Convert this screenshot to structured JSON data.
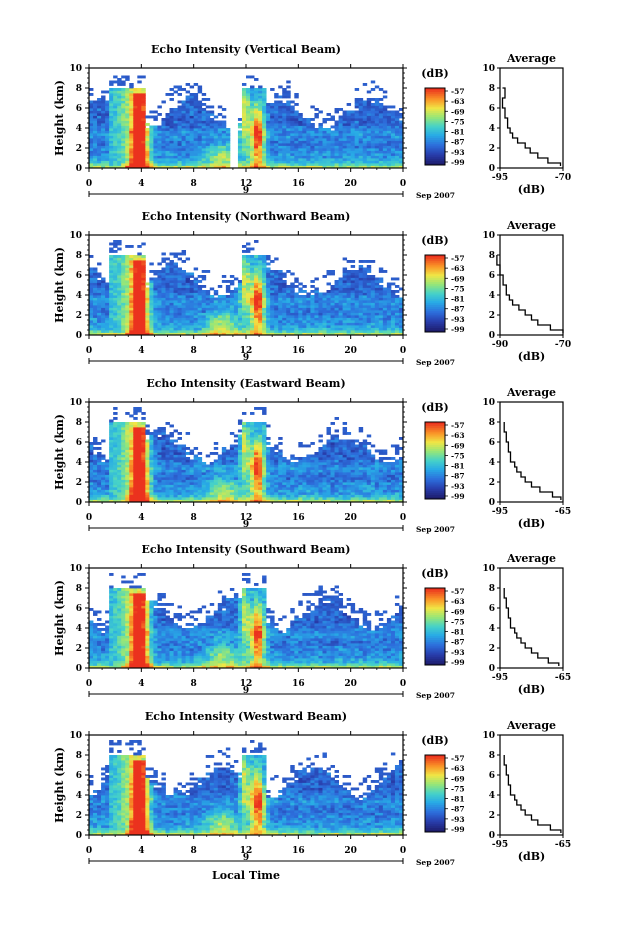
{
  "chart_data": [
    {
      "type": "heatmap",
      "title": "Echo Intensity (Vertical Beam)",
      "ylabel": "Height (km)",
      "ylim": [
        0,
        10
      ],
      "yticks": [
        "0",
        "2",
        "4",
        "6",
        "8",
        "10"
      ],
      "xlim": [
        0,
        24
      ],
      "xticks": [
        "0",
        "4",
        "8",
        "12",
        "16",
        "20",
        "0"
      ],
      "date_label": "9",
      "date_suffix": "Sep 2007",
      "colorbar": {
        "unit": "(dB)",
        "labels": [
          "-57",
          "-63",
          "-69",
          "-75",
          "-81",
          "-87",
          "-93",
          "-99"
        ]
      },
      "average": {
        "title": "Average",
        "xlabel": "(dB)",
        "xticks": [
          "-95",
          "-70"
        ],
        "ylim": [
          0,
          10
        ],
        "yticks": [
          "0",
          "2",
          "4",
          "6",
          "8",
          "10"
        ],
        "profile": [
          [
            0.2,
            -71
          ],
          [
            0.5,
            -76
          ],
          [
            1,
            -80
          ],
          [
            1.5,
            -83
          ],
          [
            2,
            -85
          ],
          [
            2.5,
            -88
          ],
          [
            3,
            -90
          ],
          [
            3.5,
            -91
          ],
          [
            4,
            -92
          ],
          [
            5,
            -93
          ],
          [
            6,
            -94
          ],
          [
            7,
            -93
          ],
          [
            8,
            -94
          ]
        ]
      },
      "gaps": [
        [
          10.8,
          11.4
        ]
      ]
    },
    {
      "type": "heatmap",
      "title": "Echo Intensity (Northward Beam)",
      "ylabel": "Height (km)",
      "ylim": [
        0,
        10
      ],
      "yticks": [
        "0",
        "2",
        "4",
        "6",
        "8",
        "10"
      ],
      "xlim": [
        0,
        24
      ],
      "xticks": [
        "0",
        "4",
        "8",
        "12",
        "16",
        "20",
        "0"
      ],
      "date_label": "9",
      "date_suffix": "Sep 2007",
      "colorbar": {
        "unit": "(dB)",
        "labels": [
          "-57",
          "-63",
          "-69",
          "-75",
          "-81",
          "-87",
          "-93",
          "-99"
        ]
      },
      "average": {
        "title": "Average",
        "xlabel": "(dB)",
        "xticks": [
          "-90",
          "-70"
        ],
        "ylim": [
          0,
          10
        ],
        "yticks": [
          "0",
          "2",
          "4",
          "6",
          "8",
          "10"
        ],
        "profile": [
          [
            0.2,
            -70
          ],
          [
            0.5,
            -74
          ],
          [
            1,
            -78
          ],
          [
            1.5,
            -80
          ],
          [
            2,
            -82
          ],
          [
            2.5,
            -84
          ],
          [
            3,
            -86
          ],
          [
            3.5,
            -87
          ],
          [
            4,
            -88
          ],
          [
            5,
            -89
          ],
          [
            6,
            -90
          ],
          [
            7,
            -91
          ],
          [
            8,
            -91
          ]
        ]
      },
      "gaps": []
    },
    {
      "type": "heatmap",
      "title": "Echo Intensity (Eastward Beam)",
      "ylabel": "Height (km)",
      "ylim": [
        0,
        10
      ],
      "yticks": [
        "0",
        "2",
        "4",
        "6",
        "8",
        "10"
      ],
      "xlim": [
        0,
        24
      ],
      "xticks": [
        "0",
        "4",
        "8",
        "12",
        "16",
        "20",
        "0"
      ],
      "date_label": "9",
      "date_suffix": "Sep 2007",
      "colorbar": {
        "unit": "(dB)",
        "labels": [
          "-57",
          "-63",
          "-69",
          "-75",
          "-81",
          "-87",
          "-93",
          "-99"
        ]
      },
      "average": {
        "title": "Average",
        "xlabel": "(dB)",
        "xticks": [
          "-95",
          "-65"
        ],
        "ylim": [
          0,
          10
        ],
        "yticks": [
          "0",
          "2",
          "4",
          "6",
          "8",
          "10"
        ],
        "profile": [
          [
            0.2,
            -66
          ],
          [
            0.5,
            -70
          ],
          [
            1,
            -76
          ],
          [
            1.5,
            -80
          ],
          [
            2,
            -83
          ],
          [
            2.5,
            -85
          ],
          [
            3,
            -87
          ],
          [
            3.5,
            -88
          ],
          [
            4,
            -90
          ],
          [
            5,
            -91
          ],
          [
            6,
            -92
          ],
          [
            7,
            -93
          ],
          [
            8,
            -93
          ]
        ]
      },
      "gaps": []
    },
    {
      "type": "heatmap",
      "title": "Echo Intensity (Southward Beam)",
      "ylabel": "Height (km)",
      "ylim": [
        0,
        10
      ],
      "yticks": [
        "0",
        "2",
        "4",
        "6",
        "8",
        "10"
      ],
      "xlim": [
        0,
        24
      ],
      "xticks": [
        "0",
        "4",
        "8",
        "12",
        "16",
        "20",
        "0"
      ],
      "date_label": "9",
      "date_suffix": "Sep 2007",
      "colorbar": {
        "unit": "(dB)",
        "labels": [
          "-57",
          "-63",
          "-69",
          "-75",
          "-81",
          "-87",
          "-93",
          "-99"
        ]
      },
      "average": {
        "title": "Average",
        "xlabel": "(dB)",
        "xticks": [
          "-95",
          "-65"
        ],
        "ylim": [
          0,
          10
        ],
        "yticks": [
          "0",
          "2",
          "4",
          "6",
          "8",
          "10"
        ],
        "profile": [
          [
            0.2,
            -67
          ],
          [
            0.5,
            -72
          ],
          [
            1,
            -77
          ],
          [
            1.5,
            -80
          ],
          [
            2,
            -83
          ],
          [
            2.5,
            -85
          ],
          [
            3,
            -87
          ],
          [
            3.5,
            -88
          ],
          [
            4,
            -90
          ],
          [
            5,
            -91
          ],
          [
            6,
            -92
          ],
          [
            7,
            -93
          ],
          [
            8,
            -93
          ]
        ]
      },
      "gaps": []
    },
    {
      "type": "heatmap",
      "title": "Echo Intensity (Westward Beam)",
      "ylabel": "Height (km)",
      "ylim": [
        0,
        10
      ],
      "yticks": [
        "0",
        "2",
        "4",
        "6",
        "8",
        "10"
      ],
      "xlim": [
        0,
        24
      ],
      "xticks": [
        "0",
        "4",
        "8",
        "12",
        "16",
        "20",
        "0"
      ],
      "date_label": "9",
      "date_suffix": "Sep 2007",
      "colorbar": {
        "unit": "(dB)",
        "labels": [
          "-57",
          "-63",
          "-69",
          "-75",
          "-81",
          "-87",
          "-93",
          "-99"
        ]
      },
      "average": {
        "title": "Average",
        "xlabel": "(dB)",
        "xticks": [
          "-95",
          "-65"
        ],
        "ylim": [
          0,
          10
        ],
        "yticks": [
          "0",
          "2",
          "4",
          "6",
          "8",
          "10"
        ],
        "profile": [
          [
            0.2,
            -66
          ],
          [
            0.5,
            -71
          ],
          [
            1,
            -77
          ],
          [
            1.5,
            -80
          ],
          [
            2,
            -83
          ],
          [
            2.5,
            -85
          ],
          [
            3,
            -87
          ],
          [
            3.5,
            -88
          ],
          [
            4,
            -90
          ],
          [
            5,
            -91
          ],
          [
            6,
            -92
          ],
          [
            7,
            -93
          ],
          [
            8,
            -93
          ]
        ]
      },
      "gaps": []
    }
  ],
  "xlabel_bottom": "Local Time"
}
